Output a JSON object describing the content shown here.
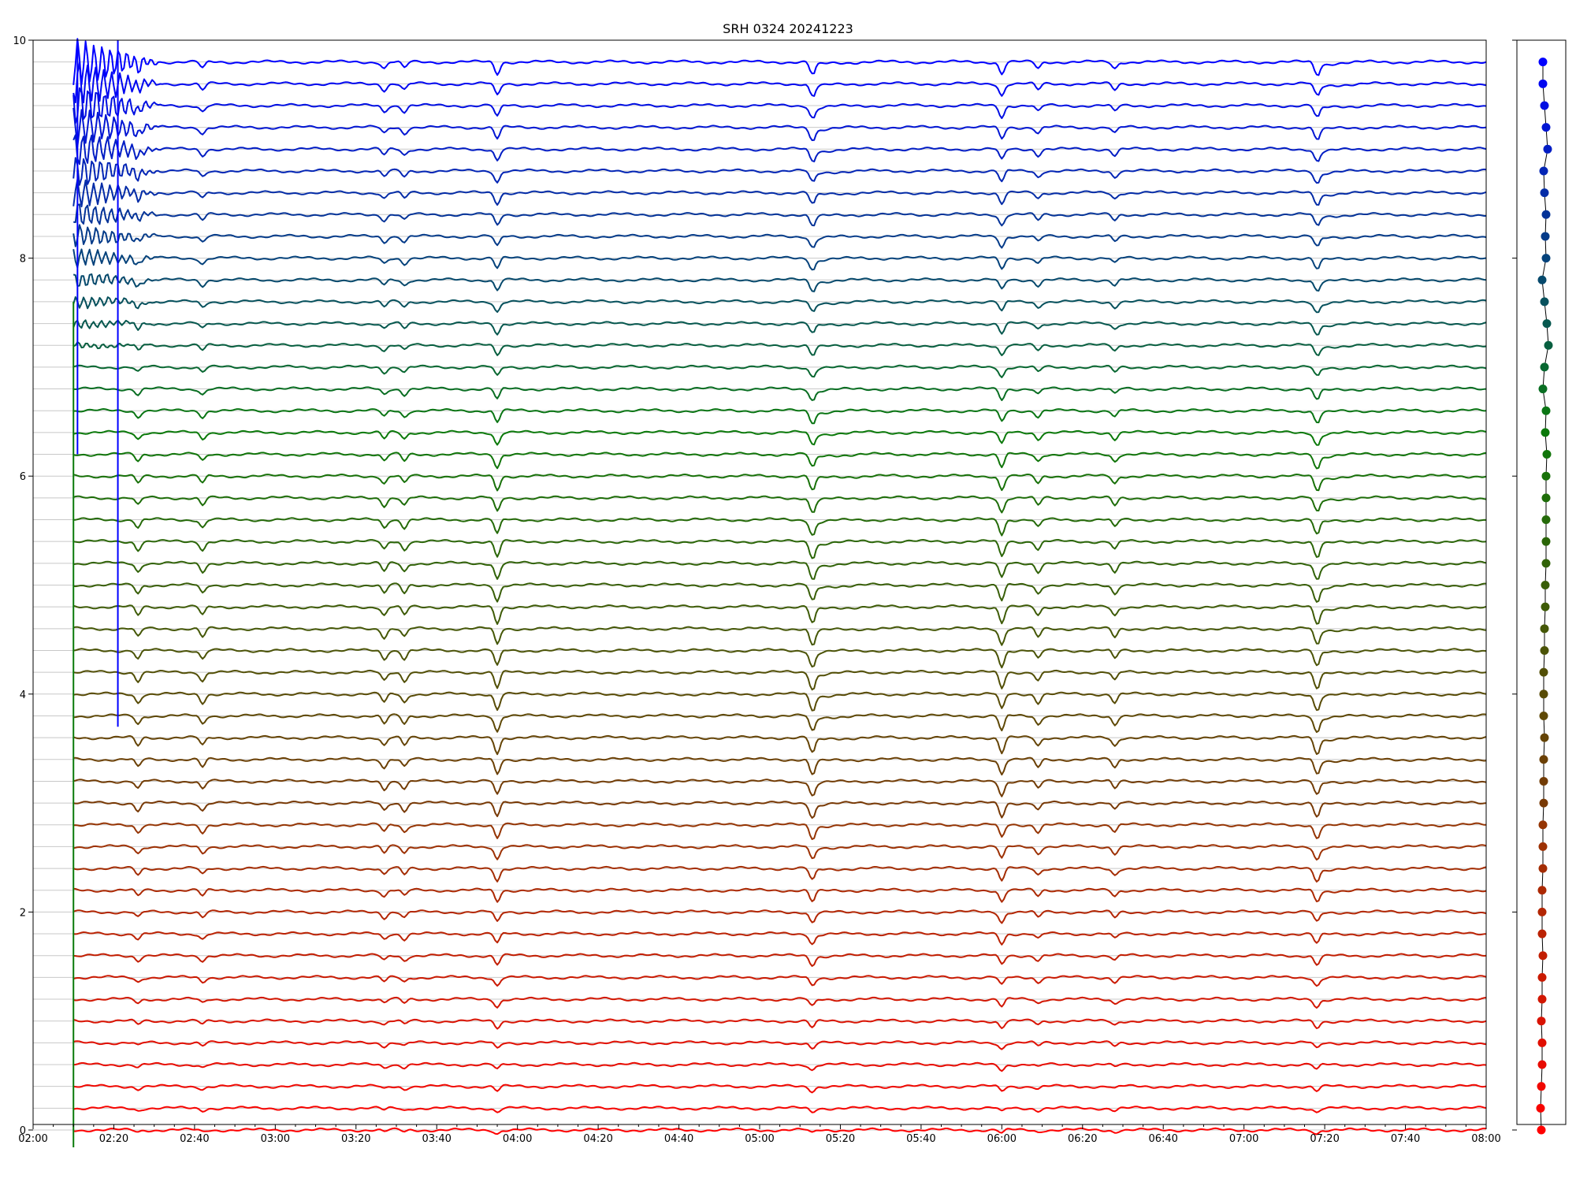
{
  "chart_data": {
    "type": "line",
    "title": "SRH 0324 20241223",
    "xlabel": "",
    "ylabel": "",
    "x_ticks": [
      "02:00",
      "02:20",
      "02:40",
      "03:00",
      "03:20",
      "03:40",
      "04:00",
      "04:20",
      "04:40",
      "05:00",
      "05:20",
      "05:40",
      "06:00",
      "06:20",
      "06:40",
      "07:00",
      "07:20",
      "07:40",
      "08:00"
    ],
    "x_range_minutes": [
      0,
      360
    ],
    "data_start_minute": 10,
    "y_ticks": [
      0,
      2,
      4,
      6,
      8,
      10
    ],
    "ylim": [
      0,
      10
    ],
    "grid": true,
    "series_count": 50,
    "series_spacing": 0.2,
    "color_gradient": {
      "bottom": "#ff0000",
      "middle": "#0a7a0a",
      "top": "#0000ff"
    },
    "events_minutes": [
      26,
      42,
      87,
      92,
      115,
      193,
      240,
      249,
      268,
      318
    ],
    "side_panel": {
      "type": "scatter",
      "points_note": "one dot per series, colored by series",
      "x_offsets": [
        0,
        -1,
        0,
        1,
        1,
        0,
        1,
        1,
        2,
        1,
        1,
        1,
        2,
        2,
        2,
        3,
        3,
        3,
        4,
        3,
        3,
        3,
        4,
        4,
        5,
        5,
        6,
        6,
        6,
        6,
        6,
        7,
        5,
        6,
        2,
        4,
        9,
        7,
        4,
        1,
        6,
        5,
        6,
        4,
        3,
        8,
        6,
        4,
        2,
        2
      ]
    }
  }
}
